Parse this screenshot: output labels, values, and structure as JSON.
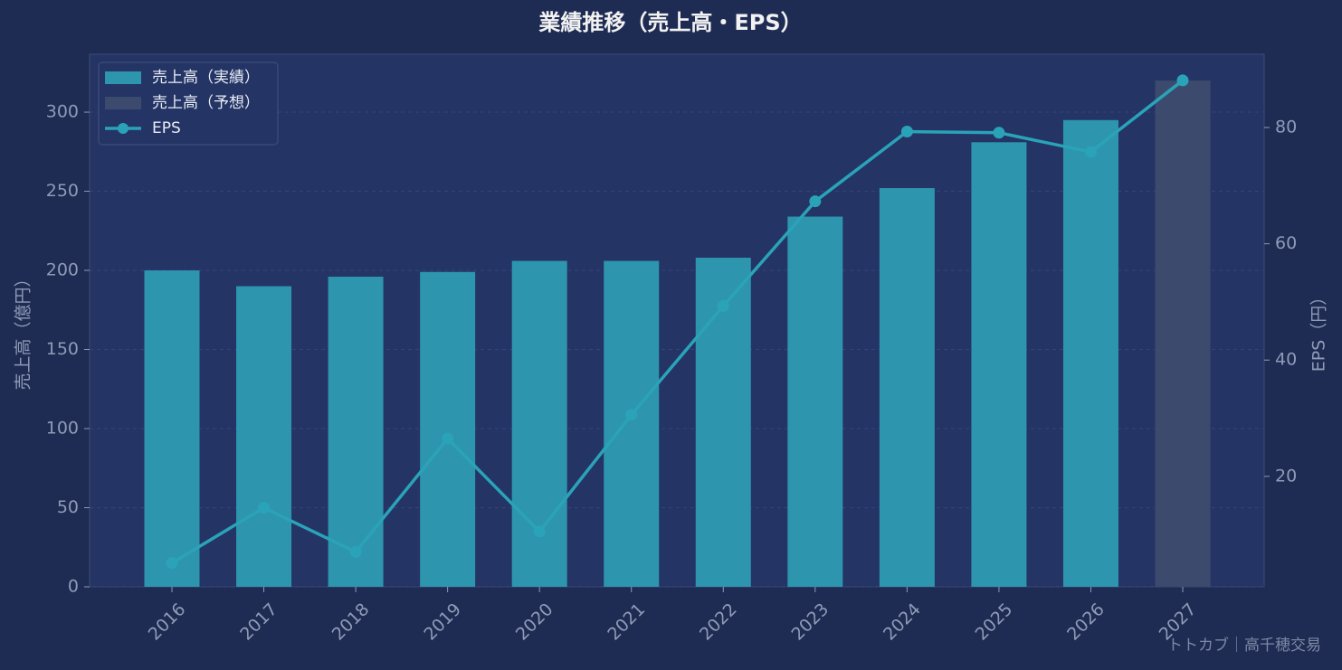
{
  "chart_data": {
    "type": "bar-line",
    "title": "業績推移（売上高・EPS）",
    "ylabel": "売上高（億円）",
    "y2label": "EPS（円）",
    "watermark": "トトカブ｜高千穂交易",
    "categories": [
      "2016",
      "2017",
      "2018",
      "2019",
      "2020",
      "2021",
      "2022",
      "2023",
      "2024",
      "2025",
      "2026",
      "2027"
    ],
    "series": [
      {
        "name": "売上高（実績）",
        "type": "bar",
        "color": "#2e95ae",
        "values": [
          200,
          190,
          196,
          199,
          206,
          206,
          208,
          234,
          252,
          281,
          295,
          null
        ]
      },
      {
        "name": "売上高（予想）",
        "type": "bar",
        "color": "#3c4a6e",
        "values": [
          null,
          null,
          null,
          null,
          null,
          null,
          null,
          null,
          null,
          null,
          null,
          320
        ]
      },
      {
        "name": "EPS",
        "type": "line",
        "axis": "y2",
        "color": "#2aa3b8",
        "values": [
          5.1,
          14.6,
          7.0,
          26.5,
          10.5,
          30.6,
          49.3,
          67.3,
          79.3,
          79.1,
          75.8,
          88.1
        ]
      }
    ],
    "ylim": [
      0,
      336.6
    ],
    "yticks": [
      0,
      50,
      100,
      150,
      200,
      250,
      300
    ],
    "y2lim": [
      1.0,
      92.6
    ],
    "y2ticks": [
      20,
      40,
      60,
      80
    ],
    "grid": true,
    "legend": "upper-left"
  }
}
